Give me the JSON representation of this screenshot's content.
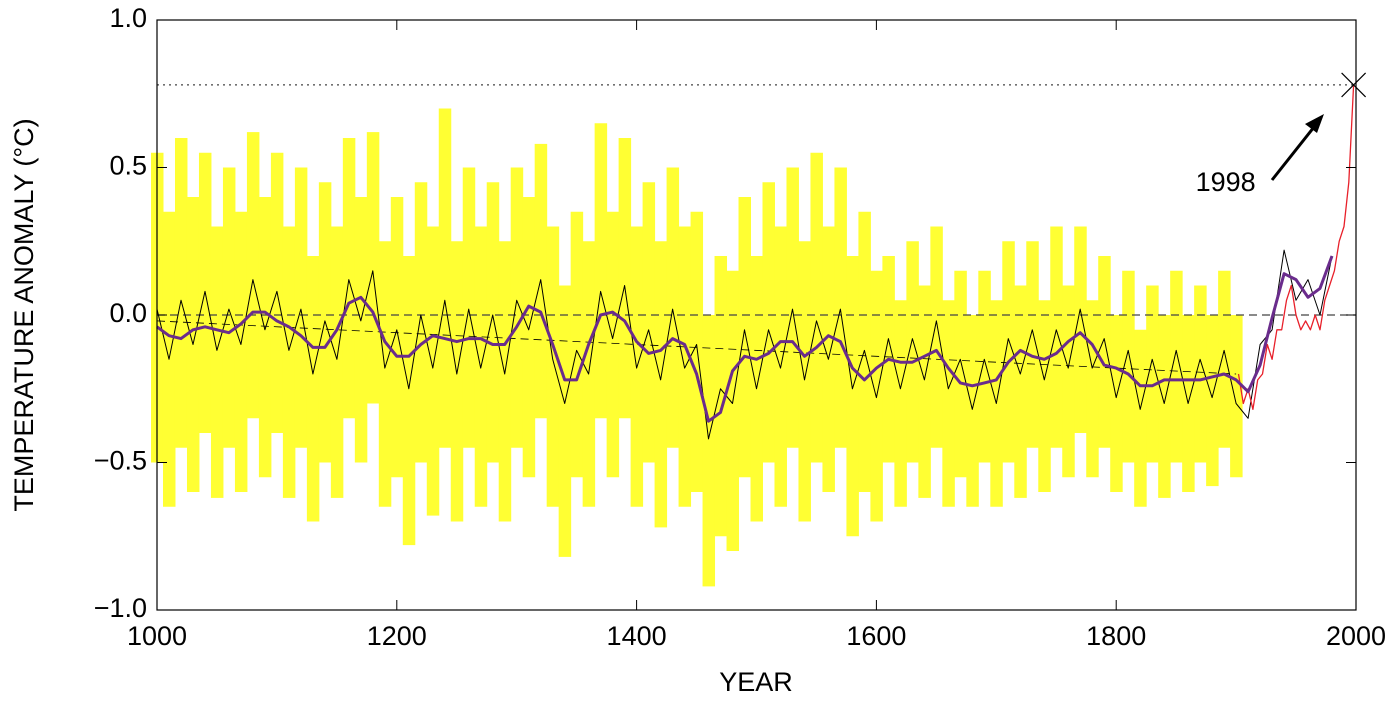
{
  "chart_data": {
    "type": "line",
    "x_label": "YEAR",
    "y_label": "TEMPERATURE ANOMALY (°C)",
    "xlim": [
      1000,
      2000
    ],
    "xticks": [
      1000,
      1200,
      1400,
      1600,
      1800,
      2000
    ],
    "ylim": [
      -1,
      1
    ],
    "yticks": [
      {
        "value": -1,
        "label": "−1.0"
      },
      {
        "value": -0.5,
        "label": "−0.5"
      },
      {
        "value": 0,
        "label": "0.0"
      },
      {
        "value": 0.5,
        "label": "0.5"
      },
      {
        "value": 1,
        "label": "1.0"
      }
    ],
    "band": {
      "color": "#ffff33",
      "x": [
        1000,
        1010,
        1020,
        1030,
        1040,
        1050,
        1060,
        1070,
        1080,
        1090,
        1100,
        1110,
        1120,
        1130,
        1140,
        1150,
        1160,
        1170,
        1180,
        1190,
        1200,
        1210,
        1220,
        1230,
        1240,
        1250,
        1260,
        1270,
        1280,
        1290,
        1300,
        1310,
        1320,
        1330,
        1340,
        1350,
        1360,
        1370,
        1380,
        1390,
        1400,
        1410,
        1420,
        1430,
        1440,
        1450,
        1460,
        1470,
        1480,
        1490,
        1500,
        1510,
        1520,
        1530,
        1540,
        1550,
        1560,
        1570,
        1580,
        1590,
        1600,
        1610,
        1620,
        1630,
        1640,
        1650,
        1660,
        1670,
        1680,
        1690,
        1700,
        1710,
        1720,
        1730,
        1740,
        1750,
        1760,
        1770,
        1780,
        1790,
        1800,
        1810,
        1820,
        1830,
        1840,
        1850,
        1860,
        1870,
        1880,
        1890,
        1900
      ],
      "upper": [
        0.55,
        0.35,
        0.6,
        0.4,
        0.55,
        0.3,
        0.5,
        0.35,
        0.62,
        0.4,
        0.55,
        0.3,
        0.5,
        0.2,
        0.45,
        0.3,
        0.6,
        0.4,
        0.62,
        0.25,
        0.4,
        0.2,
        0.45,
        0.3,
        0.7,
        0.25,
        0.5,
        0.3,
        0.45,
        0.25,
        0.5,
        0.4,
        0.58,
        0.3,
        0.1,
        0.35,
        0.25,
        0.65,
        0.35,
        0.6,
        0.3,
        0.45,
        0.25,
        0.5,
        0.3,
        0.35,
        0.0,
        0.2,
        0.15,
        0.4,
        0.2,
        0.45,
        0.3,
        0.5,
        0.25,
        0.55,
        0.3,
        0.5,
        0.2,
        0.35,
        0.15,
        0.2,
        0.05,
        0.25,
        0.1,
        0.3,
        0.05,
        0.15,
        0.0,
        0.15,
        0.05,
        0.25,
        0.1,
        0.25,
        0.05,
        0.3,
        0.1,
        0.3,
        0.05,
        0.2,
        0.0,
        0.15,
        -0.05,
        0.1,
        0.0,
        0.15,
        0.0,
        0.1,
        0.0,
        0.15,
        0.0
      ],
      "lower": [
        -0.5,
        -0.65,
        -0.45,
        -0.6,
        -0.4,
        -0.62,
        -0.45,
        -0.6,
        -0.35,
        -0.55,
        -0.4,
        -0.62,
        -0.45,
        -0.7,
        -0.5,
        -0.62,
        -0.35,
        -0.5,
        -0.3,
        -0.65,
        -0.55,
        -0.78,
        -0.5,
        -0.68,
        -0.45,
        -0.7,
        -0.45,
        -0.65,
        -0.5,
        -0.7,
        -0.45,
        -0.55,
        -0.35,
        -0.65,
        -0.82,
        -0.55,
        -0.65,
        -0.35,
        -0.55,
        -0.35,
        -0.65,
        -0.5,
        -0.72,
        -0.45,
        -0.65,
        -0.6,
        -0.92,
        -0.75,
        -0.8,
        -0.55,
        -0.7,
        -0.5,
        -0.65,
        -0.45,
        -0.7,
        -0.5,
        -0.6,
        -0.45,
        -0.75,
        -0.6,
        -0.7,
        -0.5,
        -0.65,
        -0.5,
        -0.62,
        -0.45,
        -0.65,
        -0.55,
        -0.65,
        -0.5,
        -0.65,
        -0.5,
        -0.62,
        -0.45,
        -0.6,
        -0.45,
        -0.55,
        -0.4,
        -0.55,
        -0.45,
        -0.6,
        -0.5,
        -0.65,
        -0.5,
        -0.62,
        -0.5,
        -0.6,
        -0.5,
        -0.58,
        -0.45,
        -0.55
      ]
    },
    "series": [
      {
        "color": "#000000",
        "width": 1,
        "x": [
          1000,
          1010,
          1020,
          1030,
          1040,
          1050,
          1060,
          1070,
          1080,
          1090,
          1100,
          1110,
          1120,
          1130,
          1140,
          1150,
          1160,
          1170,
          1180,
          1190,
          1200,
          1210,
          1220,
          1230,
          1240,
          1250,
          1260,
          1270,
          1280,
          1290,
          1300,
          1310,
          1320,
          1330,
          1340,
          1350,
          1360,
          1370,
          1380,
          1390,
          1400,
          1410,
          1420,
          1430,
          1440,
          1450,
          1460,
          1470,
          1480,
          1490,
          1500,
          1510,
          1520,
          1530,
          1540,
          1550,
          1560,
          1570,
          1580,
          1590,
          1600,
          1610,
          1620,
          1630,
          1640,
          1650,
          1660,
          1670,
          1680,
          1690,
          1700,
          1710,
          1720,
          1730,
          1740,
          1750,
          1760,
          1770,
          1780,
          1790,
          1800,
          1810,
          1820,
          1830,
          1840,
          1850,
          1860,
          1870,
          1880,
          1890,
          1900,
          1910,
          1920,
          1930,
          1940,
          1950,
          1960,
          1970,
          1980
        ],
        "values": [
          0.02,
          -0.15,
          0.05,
          -0.1,
          0.08,
          -0.12,
          0.02,
          -0.1,
          0.12,
          -0.05,
          0.08,
          -0.12,
          0.02,
          -0.2,
          -0.02,
          -0.15,
          0.12,
          -0.02,
          0.15,
          -0.18,
          -0.05,
          -0.25,
          0.0,
          -0.18,
          0.05,
          -0.2,
          0.02,
          -0.18,
          0.0,
          -0.2,
          0.05,
          -0.05,
          0.12,
          -0.15,
          -0.3,
          -0.12,
          -0.2,
          0.08,
          -0.08,
          0.1,
          -0.18,
          -0.05,
          -0.22,
          0.02,
          -0.18,
          -0.1,
          -0.42,
          -0.25,
          -0.3,
          -0.05,
          -0.25,
          -0.05,
          -0.18,
          0.02,
          -0.22,
          -0.02,
          -0.15,
          0.02,
          -0.25,
          -0.12,
          -0.28,
          -0.08,
          -0.25,
          -0.08,
          -0.22,
          -0.02,
          -0.25,
          -0.15,
          -0.32,
          -0.15,
          -0.3,
          -0.08,
          -0.2,
          -0.05,
          -0.22,
          -0.05,
          -0.18,
          0.02,
          -0.18,
          -0.08,
          -0.28,
          -0.12,
          -0.32,
          -0.15,
          -0.3,
          -0.12,
          -0.3,
          -0.15,
          -0.28,
          -0.12,
          -0.3,
          -0.35,
          -0.1,
          -0.05,
          0.22,
          0.05,
          0.12,
          0.0,
          0.2
        ]
      },
      {
        "color": "#e8202a",
        "width": 1.3,
        "x": [
          1902,
          1906,
          1910,
          1914,
          1918,
          1922,
          1926,
          1930,
          1934,
          1938,
          1942,
          1946,
          1950,
          1954,
          1958,
          1962,
          1966,
          1970,
          1974,
          1978,
          1982,
          1986,
          1990,
          1994,
          1998
        ],
        "values": [
          -0.2,
          -0.3,
          -0.25,
          -0.32,
          -0.22,
          -0.2,
          -0.1,
          -0.15,
          -0.05,
          -0.05,
          0.05,
          0.1,
          0.0,
          -0.05,
          -0.02,
          -0.05,
          0.0,
          -0.05,
          0.05,
          0.1,
          0.15,
          0.25,
          0.3,
          0.45,
          0.78
        ]
      },
      {
        "color": "#000000",
        "width": 0.8,
        "style": "dashed",
        "x": [
          1000,
          1900
        ],
        "values": [
          -0.02,
          -0.2
        ]
      },
      {
        "color": "#6a2c8c",
        "width": 3,
        "x": [
          1000,
          1010,
          1020,
          1030,
          1040,
          1050,
          1060,
          1070,
          1080,
          1090,
          1100,
          1110,
          1120,
          1130,
          1140,
          1150,
          1160,
          1170,
          1180,
          1190,
          1200,
          1210,
          1220,
          1230,
          1240,
          1250,
          1260,
          1270,
          1280,
          1290,
          1300,
          1310,
          1320,
          1330,
          1340,
          1350,
          1360,
          1370,
          1380,
          1390,
          1400,
          1410,
          1420,
          1430,
          1440,
          1450,
          1460,
          1470,
          1480,
          1490,
          1500,
          1510,
          1520,
          1530,
          1540,
          1550,
          1560,
          1570,
          1580,
          1590,
          1600,
          1610,
          1620,
          1630,
          1640,
          1650,
          1660,
          1670,
          1680,
          1690,
          1700,
          1710,
          1720,
          1730,
          1740,
          1750,
          1760,
          1770,
          1780,
          1790,
          1800,
          1810,
          1820,
          1830,
          1840,
          1850,
          1860,
          1870,
          1880,
          1890,
          1900,
          1910,
          1920,
          1930,
          1940,
          1950,
          1960,
          1970,
          1980
        ],
        "values": [
          -0.04,
          -0.07,
          -0.08,
          -0.05,
          -0.04,
          -0.05,
          -0.06,
          -0.03,
          0.01,
          0.01,
          -0.02,
          -0.04,
          -0.07,
          -0.11,
          -0.11,
          -0.05,
          0.04,
          0.06,
          0.01,
          -0.09,
          -0.14,
          -0.14,
          -0.1,
          -0.07,
          -0.08,
          -0.09,
          -0.08,
          -0.08,
          -0.1,
          -0.1,
          -0.04,
          0.03,
          0.01,
          -0.1,
          -0.22,
          -0.22,
          -0.1,
          0.0,
          0.01,
          -0.02,
          -0.09,
          -0.13,
          -0.12,
          -0.08,
          -0.1,
          -0.2,
          -0.36,
          -0.33,
          -0.19,
          -0.14,
          -0.15,
          -0.13,
          -0.09,
          -0.09,
          -0.14,
          -0.11,
          -0.07,
          -0.09,
          -0.18,
          -0.22,
          -0.18,
          -0.15,
          -0.16,
          -0.16,
          -0.14,
          -0.12,
          -0.18,
          -0.23,
          -0.24,
          -0.23,
          -0.22,
          -0.16,
          -0.12,
          -0.14,
          -0.15,
          -0.13,
          -0.09,
          -0.06,
          -0.1,
          -0.17,
          -0.18,
          -0.2,
          -0.24,
          -0.24,
          -0.22,
          -0.22,
          -0.22,
          -0.22,
          -0.21,
          -0.2,
          -0.22,
          -0.26,
          -0.17,
          -0.01,
          0.14,
          0.12,
          0.06,
          0.09,
          0.2
        ]
      }
    ],
    "hlines": [
      {
        "value": 0,
        "style": "dashed"
      },
      {
        "value": 0.78,
        "style": "dotted"
      }
    ],
    "annotation": {
      "text": "1998",
      "x": 1998,
      "y": 0.78
    }
  }
}
